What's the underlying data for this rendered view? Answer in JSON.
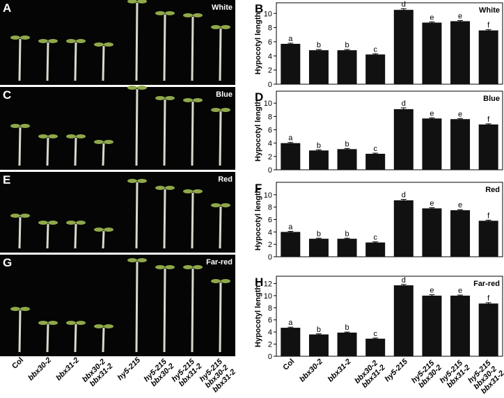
{
  "photos": [
    {
      "panel": "A",
      "label": "White"
    },
    {
      "panel": "C",
      "label": "Blue"
    },
    {
      "panel": "E",
      "label": "Red"
    },
    {
      "panel": "G",
      "label": "Far-red"
    }
  ],
  "photo_categories": [
    "Col",
    "bbx30-2",
    "bbx31-2",
    "bbx30-2 bbx31-2",
    "hy5-215",
    "hy5-215 bbx30-2",
    "hy5-215 bbx31-2",
    "hy5-215 bbx30-2 bbx31-2"
  ],
  "chart_data": [
    {
      "type": "bar",
      "panel": "B",
      "title": "White",
      "ylabel": "Hypocotyl length",
      "color": "#111111",
      "categories": [
        null,
        null,
        null,
        null,
        null,
        null,
        null,
        null
      ],
      "values": [
        5.7,
        4.8,
        4.8,
        4.2,
        10.5,
        8.7,
        8.9,
        7.6
      ],
      "errors": [
        0.1,
        0.1,
        0.1,
        0.1,
        0.15,
        0.1,
        0.1,
        0.1
      ],
      "letters": [
        "a",
        "b",
        "b",
        "c",
        "d",
        "e",
        "e",
        "f"
      ],
      "ylim": [
        0,
        11.5
      ],
      "yticks": [
        0,
        2,
        4,
        6,
        8,
        10
      ]
    },
    {
      "type": "bar",
      "panel": "D",
      "title": "Blue",
      "ylabel": "Hypocotyl length",
      "color": "#111111",
      "categories": [
        null,
        null,
        null,
        null,
        null,
        null,
        null,
        null
      ],
      "values": [
        4.0,
        2.9,
        3.1,
        2.4,
        9.1,
        7.7,
        7.6,
        6.8
      ],
      "errors": [
        0.1,
        0.1,
        0.1,
        0.1,
        0.2,
        0.1,
        0.1,
        0.1
      ],
      "letters": [
        "a",
        "b",
        "b",
        "c",
        "d",
        "e",
        "e",
        "f"
      ],
      "ylim": [
        0,
        11.8
      ],
      "yticks": [
        0,
        2,
        4,
        6,
        8,
        10
      ]
    },
    {
      "type": "bar",
      "panel": "F",
      "title": "Red",
      "ylabel": "Hypocotyl length",
      "color": "#111111",
      "categories": [
        null,
        null,
        null,
        null,
        null,
        null,
        null,
        null
      ],
      "values": [
        4.0,
        2.9,
        2.9,
        2.3,
        9.1,
        7.8,
        7.5,
        5.8
      ],
      "errors": [
        0.1,
        0.1,
        0.1,
        0.1,
        0.15,
        0.1,
        0.1,
        0.1
      ],
      "letters": [
        "a",
        "b",
        "b",
        "c",
        "d",
        "e",
        "e",
        "f"
      ],
      "ylim": [
        0,
        12
      ],
      "yticks": [
        0,
        2,
        4,
        6,
        8,
        10
      ]
    },
    {
      "type": "bar",
      "panel": "H",
      "title": "Far-red",
      "ylabel": "Hypocotyl length",
      "color": "#111111",
      "categories": [
        "Col",
        "bbx30-2",
        "bbx31-2",
        "bbx30-2 bbx31-2",
        "hy5-215",
        "hy5-215 bbx30-2",
        "hy5-215 bbx31-2",
        "hy5-215 bbx30-2 bbx31-2"
      ],
      "values": [
        4.7,
        3.6,
        3.9,
        2.9,
        11.7,
        10.0,
        10.0,
        8.7
      ],
      "errors": [
        0.1,
        0.1,
        0.1,
        0.1,
        0.15,
        0.15,
        0.1,
        0.15
      ],
      "letters": [
        "a",
        "b",
        "b",
        "c",
        "d",
        "e",
        "e",
        "f"
      ],
      "ylim": [
        0,
        13.2
      ],
      "yticks": [
        0,
        2,
        4,
        6,
        8,
        10,
        12
      ]
    }
  ]
}
